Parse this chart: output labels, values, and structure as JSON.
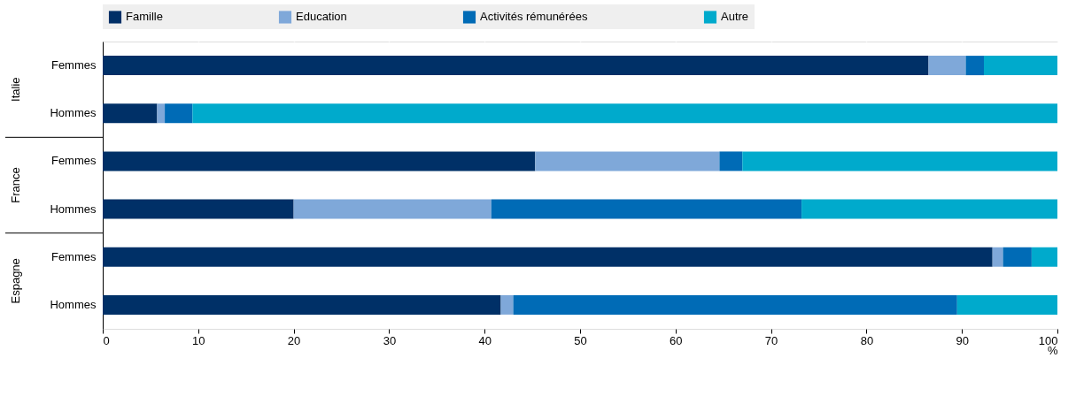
{
  "chart_data": {
    "type": "bar",
    "orientation": "horizontal",
    "stacked": true,
    "categories": [
      "Femmes",
      "Hommes",
      "Femmes",
      "Hommes",
      "Femmes",
      "Hommes"
    ],
    "annotations": [
      "Italie",
      "France",
      "Espagne"
    ],
    "xlabel": "%",
    "series": [
      {
        "name": "Famille",
        "color": "#003067",
        "values": [
          86.5,
          5.7,
          45.3,
          20.0,
          93.2,
          41.7
        ]
      },
      {
        "name": "Education",
        "color": "#7fa8d9",
        "values": [
          3.9,
          0.8,
          19.3,
          20.7,
          1.1,
          1.3
        ]
      },
      {
        "name": "Activités rémunérées",
        "color": "#006bb6",
        "values": [
          1.9,
          2.9,
          2.4,
          32.5,
          3.0,
          46.5
        ]
      },
      {
        "name": "Autre",
        "color": "#00aacc",
        "values": [
          7.7,
          90.6,
          33.0,
          26.8,
          2.7,
          10.5
        ]
      }
    ],
    "xlim": [
      0,
      100
    ],
    "xticks": [
      0,
      10,
      20,
      30,
      40,
      50,
      60,
      70,
      80,
      90,
      100
    ],
    "grid": "x",
    "legend": "top"
  }
}
